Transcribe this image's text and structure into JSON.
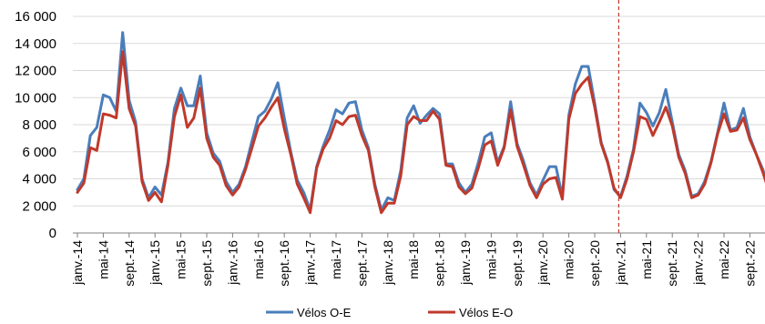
{
  "chart_data": {
    "type": "line",
    "title": "",
    "xlabel": "",
    "ylabel": "",
    "ylim": [
      0,
      16000
    ],
    "yticks": [
      {
        "value": 0,
        "label": "0"
      },
      {
        "value": 2000,
        "label": "2 000"
      },
      {
        "value": 4000,
        "label": "4 000"
      },
      {
        "value": 6000,
        "label": "6 000"
      },
      {
        "value": 8000,
        "label": "8 000"
      },
      {
        "value": 10000,
        "label": "10 000"
      },
      {
        "value": 12000,
        "label": "12 000"
      },
      {
        "value": 14000,
        "label": "14 000"
      },
      {
        "value": 16000,
        "label": "16 000"
      }
    ],
    "grid": "horizontal",
    "legend": "bottom",
    "x_tick_labels": [
      "janv.-14",
      "mai-14",
      "sept.-14",
      "janv.-15",
      "mai-15",
      "sept.-15",
      "janv.-16",
      "mai-16",
      "sept.-16",
      "janv.-17",
      "mai-17",
      "sept.-17",
      "janv.-18",
      "mai-18",
      "sept.-18",
      "janv.-19",
      "mai-19",
      "sept.-19",
      "janv.-20",
      "mai-20",
      "sept.-20",
      "janv.-21",
      "mai-21",
      "sept.-21",
      "janv.-22",
      "mai-22",
      "sept.-22"
    ],
    "x_tick_every": 4,
    "reference_line": {
      "at_month_index": 84,
      "color": "#c0392b",
      "style": "dashed"
    },
    "series": [
      {
        "name": "Vélos O-E",
        "color": "#4a7ebb",
        "values": [
          3200,
          4000,
          7200,
          7800,
          10200,
          10000,
          9000,
          14800,
          9800,
          8200,
          4000,
          2600,
          3400,
          2800,
          5200,
          9200,
          10700,
          9400,
          9400,
          11600,
          7400,
          5900,
          5300,
          3800,
          3000,
          3600,
          4900,
          6800,
          8600,
          9000,
          9900,
          11100,
          8500,
          6000,
          3900,
          3000,
          1700,
          4900,
          6400,
          7600,
          9100,
          8800,
          9600,
          9700,
          7600,
          6300,
          3600,
          1700,
          2600,
          2400,
          4600,
          8500,
          9400,
          8100,
          8700,
          9200,
          8800,
          5100,
          5100,
          3700,
          3000,
          3600,
          5200,
          7100,
          7400,
          5200,
          6400,
          9700,
          6600,
          5300,
          3700,
          2800,
          3900,
          4900,
          4900,
          2700,
          8700,
          11000,
          12300,
          12300,
          9600,
          6700,
          5300,
          3200,
          2700,
          4200,
          6200,
          9600,
          8900,
          7900,
          8900,
          10600,
          8200,
          5800,
          4600,
          2700,
          2900,
          3800,
          5300,
          7400,
          9600,
          7600,
          7800,
          9200,
          7100,
          5800,
          4700,
          3100
        ]
      },
      {
        "name": "Vélos E-O",
        "color": "#c0392b",
        "values": [
          3000,
          3700,
          6300,
          6100,
          8800,
          8700,
          8500,
          13400,
          9200,
          7900,
          3800,
          2400,
          3000,
          2300,
          5000,
          8600,
          10200,
          7800,
          8500,
          10700,
          7000,
          5600,
          5000,
          3500,
          2800,
          3400,
          4700,
          6300,
          7900,
          8500,
          9300,
          10000,
          7700,
          5800,
          3600,
          2600,
          1500,
          4800,
          6200,
          7000,
          8300,
          8000,
          8600,
          8700,
          7200,
          6100,
          3400,
          1500,
          2200,
          2200,
          4200,
          8000,
          8600,
          8300,
          8300,
          9000,
          8400,
          5000,
          4900,
          3400,
          2900,
          3300,
          4800,
          6500,
          6800,
          5000,
          6300,
          9100,
          6400,
          5000,
          3500,
          2600,
          3600,
          4000,
          4100,
          2500,
          8400,
          10300,
          11000,
          11500,
          9300,
          6600,
          5200,
          3300,
          2600,
          4000,
          6000,
          8600,
          8400,
          7200,
          8200,
          9300,
          7900,
          5600,
          4400,
          2600,
          2800,
          3600,
          5200,
          7300,
          8800,
          7500,
          7600,
          8500,
          6900,
          5800,
          4500,
          3000
        ]
      }
    ]
  }
}
